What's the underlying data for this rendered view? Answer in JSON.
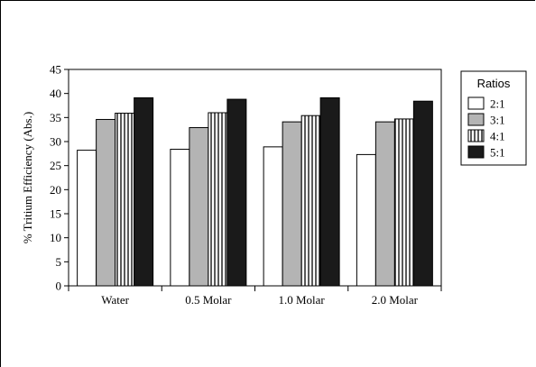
{
  "chart_data": {
    "type": "bar",
    "title": "",
    "xlabel": "",
    "ylabel": "% Tritium Efficiency (Abs.)",
    "ylim": [
      0,
      45
    ],
    "yticks": [
      0,
      5,
      10,
      15,
      20,
      25,
      30,
      35,
      40,
      45
    ],
    "grid": false,
    "legend_position": "right",
    "legend_title": "Ratios",
    "categories": [
      "Water",
      "0.5 Molar",
      "1.0 Molar",
      "2.0 Molar"
    ],
    "series": [
      {
        "name": "2:1",
        "fill": "white",
        "values": [
          28.2,
          28.4,
          28.9,
          27.3
        ]
      },
      {
        "name": "3:1",
        "fill": "gray",
        "values": [
          34.6,
          32.9,
          34.1,
          34.1
        ]
      },
      {
        "name": "4:1",
        "fill": "striped",
        "values": [
          35.9,
          36.0,
          35.4,
          34.7
        ]
      },
      {
        "name": "5:1",
        "fill": "black",
        "values": [
          39.1,
          38.8,
          39.1,
          38.4
        ]
      }
    ],
    "colors": {
      "white": "#ffffff",
      "gray": "#b4b4b4",
      "black": "#1a1a1a",
      "stroke": "#000000"
    }
  }
}
